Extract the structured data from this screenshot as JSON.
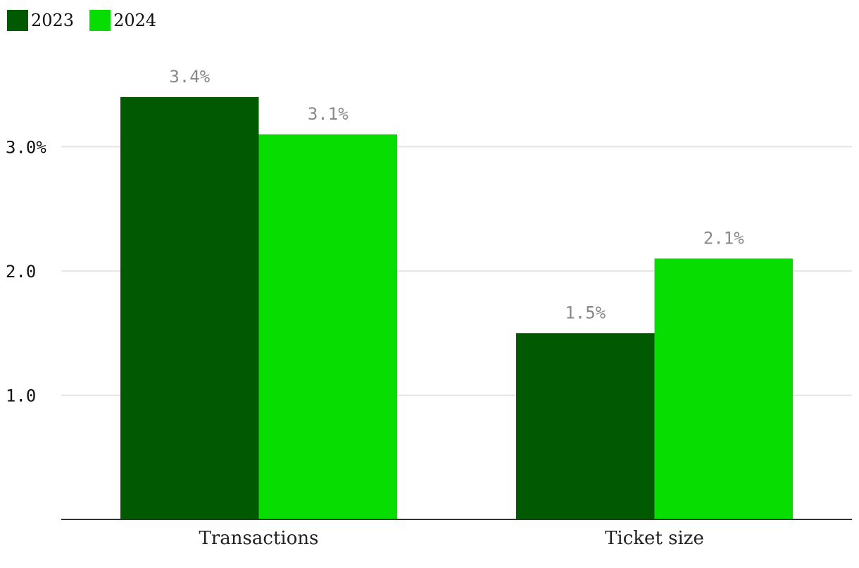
{
  "chart_data": {
    "type": "bar",
    "title": "",
    "xlabel": "",
    "ylabel": "",
    "categories": [
      "Transactions",
      "Ticket size"
    ],
    "series": [
      {
        "name": "2023",
        "color": "#015901",
        "values": [
          3.4,
          1.5
        ],
        "labels": [
          "3.4%",
          "1.5%"
        ]
      },
      {
        "name": "2024",
        "color": "#08dd02",
        "values": [
          3.1,
          2.1
        ],
        "labels": [
          "3.1%",
          "2.1%"
        ]
      }
    ],
    "ylim": [
      0,
      3.6
    ],
    "yticks": [
      {
        "value": 1.0,
        "label": "1.0"
      },
      {
        "value": 2.0,
        "label": "2.0"
      },
      {
        "value": 3.0,
        "label": "3.0%"
      }
    ],
    "grid": true,
    "legend_position": "top-left"
  }
}
